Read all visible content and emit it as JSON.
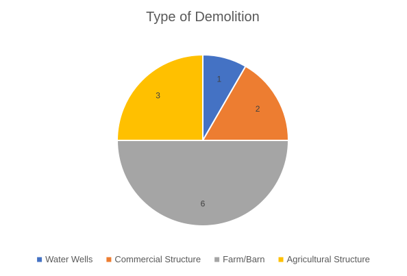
{
  "chart_data": {
    "type": "pie",
    "title": "Type of Demolition",
    "categories": [
      "Water Wells",
      "Commercial Structure",
      "Farm/Barn",
      "Agricultural Structure"
    ],
    "values": [
      1,
      2,
      6,
      3
    ],
    "data_labels": [
      "1",
      "2",
      "6",
      "3"
    ],
    "colors": [
      "#4472C4",
      "#ED7D31",
      "#A5A5A5",
      "#FFC000"
    ],
    "start_angle_deg": 0,
    "direction": "clockwise",
    "slice_border_color": "#ffffff",
    "legend_position": "bottom"
  }
}
